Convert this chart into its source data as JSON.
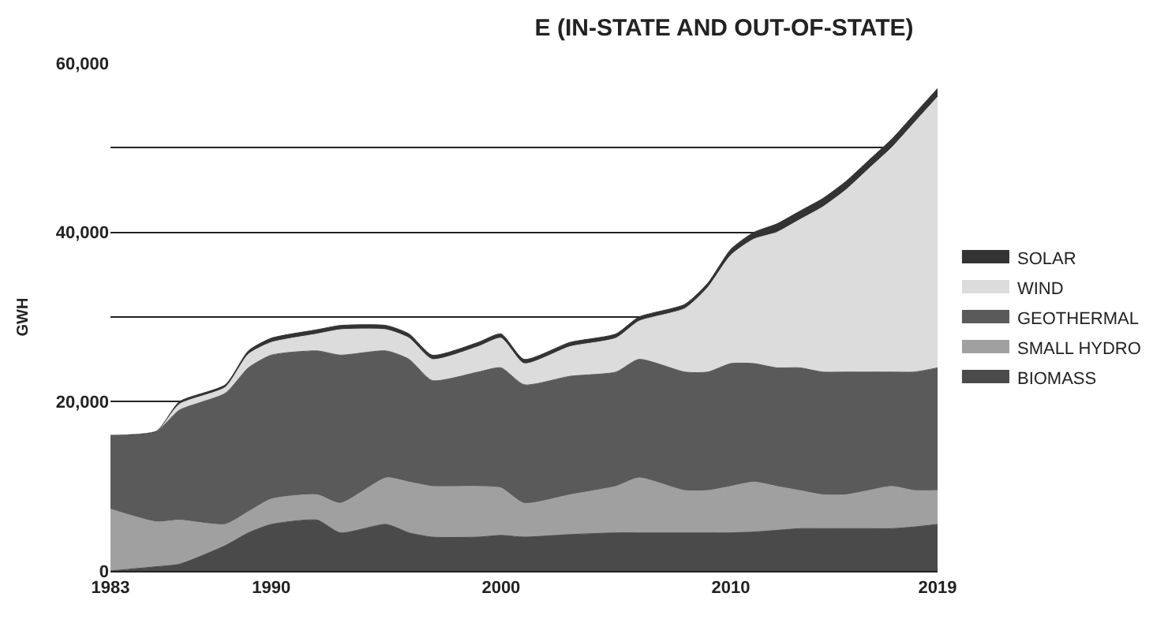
{
  "chart_data": {
    "type": "area",
    "stacked": true,
    "title": "E (IN-STATE AND OUT-OF-STATE)",
    "ylabel": "GWH",
    "x": [
      1983,
      1985,
      1986,
      1988,
      1989,
      1990,
      1992,
      1993,
      1995,
      1996,
      1997,
      1999,
      2000,
      2001,
      2003,
      2005,
      2006,
      2008,
      2009,
      2010,
      2011,
      2012,
      2013,
      2014,
      2015,
      2016,
      2017,
      2018,
      2019
    ],
    "series": [
      {
        "name": "BIOMASS",
        "color": "#4a4a4a",
        "values": [
          0,
          500,
          800,
          3000,
          4500,
          5500,
          6000,
          4500,
          5500,
          4500,
          4000,
          4000,
          4200,
          4000,
          4300,
          4500,
          4500,
          4500,
          4500,
          4500,
          4600,
          4800,
          5000,
          5000,
          5000,
          5000,
          5000,
          5200,
          5500
        ]
      },
      {
        "name": "SMALL HYDRO",
        "color": "#a0a0a0",
        "values": [
          7300,
          5300,
          5200,
          2500,
          2500,
          3000,
          3000,
          3500,
          5500,
          6000,
          6000,
          6000,
          5600,
          4000,
          4700,
          5500,
          6500,
          5000,
          5000,
          5500,
          5900,
          5200,
          4500,
          4000,
          4000,
          4500,
          5000,
          4300,
          4000
        ]
      },
      {
        "name": "GEOTHERMAL",
        "color": "#5a5a5a",
        "values": [
          8700,
          10700,
          13000,
          15500,
          17000,
          17000,
          17000,
          17500,
          15000,
          14500,
          12500,
          13500,
          14200,
          14000,
          14000,
          13500,
          14000,
          14000,
          14000,
          14500,
          14000,
          14000,
          14500,
          14500,
          14500,
          14000,
          13500,
          14000,
          14500
        ]
      },
      {
        "name": "WIND",
        "color": "#dcdcdc",
        "values": [
          0,
          0,
          700,
          700,
          1600,
          1500,
          2000,
          3000,
          2500,
          2500,
          2500,
          3000,
          3500,
          2500,
          3500,
          4000,
          4500,
          7500,
          10000,
          12800,
          14700,
          16000,
          17500,
          19500,
          21500,
          24000,
          26500,
          29500,
          32000
        ]
      },
      {
        "name": "SOLAR",
        "color": "#333333",
        "values": [
          0,
          0,
          300,
          300,
          400,
          500,
          500,
          500,
          500,
          500,
          500,
          500,
          500,
          500,
          500,
          500,
          500,
          500,
          500,
          700,
          800,
          1000,
          1000,
          1000,
          1000,
          1000,
          1000,
          1000,
          1000
        ]
      }
    ],
    "xlim": [
      1983,
      2019
    ],
    "xticks": [
      1983,
      1990,
      2000,
      2010,
      2019
    ],
    "ylim": [
      0,
      60000
    ],
    "yticks": [
      0,
      {
        "value": 10000,
        "label": null
      },
      "20,000",
      {
        "value": 30000,
        "label": null
      },
      {
        "value": 40000,
        "label": "40,000"
      },
      {
        "value": 50000,
        "label": null
      },
      {
        "value": 60000,
        "label": "60,000"
      }
    ],
    "grid": "y",
    "legend": "right"
  }
}
